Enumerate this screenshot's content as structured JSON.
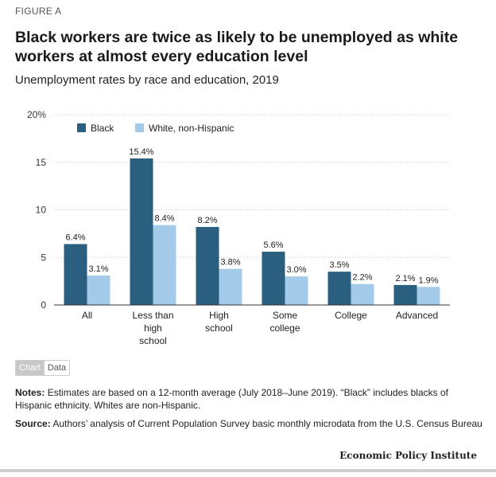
{
  "figure_label": "FIGURE A",
  "title": "Black workers are twice as likely to be unemployed as white workers at almost every education level",
  "subtitle": "Unemployment rates by race and education, 2019",
  "toggle": {
    "chart_label": "Chart",
    "data_label": "Data"
  },
  "notes": {
    "notes_label": "Notes:",
    "notes_text": "Estimates are based on a 12-month average (July 2018–June 2019). “Black” includes blacks of Hispanic ethnicity. Whites are non-Hispanic.",
    "source_label": "Source:",
    "source_text": "Authors’ analysis of Current Population Survey basic monthly microdata from the U.S. Census Bureau"
  },
  "brand": "Economic Policy Institute",
  "chart_data": {
    "type": "bar",
    "categories": [
      [
        "All"
      ],
      [
        "Less than",
        "high",
        "school"
      ],
      [
        "High",
        "school"
      ],
      [
        "Some",
        "college"
      ],
      [
        "College"
      ],
      [
        "Advanced"
      ]
    ],
    "series": [
      {
        "name": "Black",
        "color": "#2a5f80",
        "values": [
          6.4,
          15.4,
          8.2,
          5.6,
          3.5,
          2.1
        ],
        "labels": [
          "6.4%",
          "15.4%",
          "8.2%",
          "5.6%",
          "3.5%",
          "2.1%"
        ]
      },
      {
        "name": "White, non-Hispanic",
        "color": "#a3cbe9",
        "values": [
          3.1,
          8.4,
          3.8,
          3.0,
          2.2,
          1.9
        ],
        "labels": [
          "3.1%",
          "8.4%",
          "3.8%",
          "3.0%",
          "2.2%",
          "1.9%"
        ]
      }
    ],
    "yticks": [
      {
        "value": 0,
        "label": "0"
      },
      {
        "value": 5,
        "label": "5"
      },
      {
        "value": 10,
        "label": "10"
      },
      {
        "value": 15,
        "label": "15"
      },
      {
        "value": 20,
        "label": "20%"
      }
    ],
    "ylim": [
      0,
      20
    ],
    "grid": true,
    "legend_position": "top-left"
  }
}
